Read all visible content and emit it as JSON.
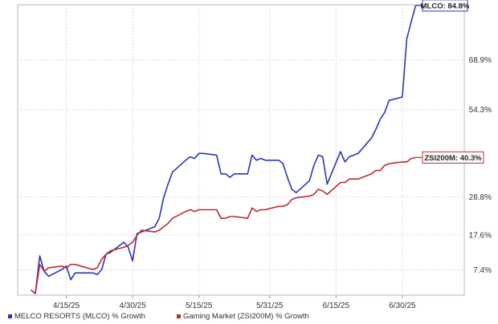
{
  "chart_data": {
    "type": "line",
    "title": "",
    "xlabel": "",
    "ylabel": "",
    "x_tick_labels": [
      "4/15/25",
      "4/30/25",
      "5/15/25",
      "5/31/25",
      "6/15/25",
      "6/30/25"
    ],
    "y_tick_labels": [
      "7.4%",
      "17.6%",
      "28.8%",
      "54.3%",
      "68.9%"
    ],
    "ylim_label": [
      "0%",
      "85%"
    ],
    "grid": true,
    "legend_position": "bottom",
    "series": [
      {
        "name": "MELCO RESORTS (MLCO) % Growth",
        "color": "#2b35b8",
        "end_label": "MLCO: 84.8%",
        "points": [
          [
            "2025-04-07",
            1.5
          ],
          [
            "2025-04-08",
            0.5
          ],
          [
            "2025-04-09",
            11.5
          ],
          [
            "2025-04-10",
            7.0
          ],
          [
            "2025-04-11",
            5.5
          ],
          [
            "2025-04-14",
            7.5
          ],
          [
            "2025-04-15",
            8.5
          ],
          [
            "2025-04-16",
            4.5
          ],
          [
            "2025-04-17",
            6.5
          ],
          [
            "2025-04-21",
            6.5
          ],
          [
            "2025-04-22",
            6.0
          ],
          [
            "2025-04-23",
            7.5
          ],
          [
            "2025-04-24",
            12.0
          ],
          [
            "2025-04-25",
            12.5
          ],
          [
            "2025-04-28",
            15.5
          ],
          [
            "2025-04-29",
            14.0
          ],
          [
            "2025-04-30",
            10.0
          ],
          [
            "2025-05-01",
            18.0
          ],
          [
            "2025-05-02",
            18.5
          ],
          [
            "2025-05-05",
            20.0
          ],
          [
            "2025-05-06",
            22.5
          ],
          [
            "2025-05-07",
            28.5
          ],
          [
            "2025-05-08",
            32.5
          ],
          [
            "2025-05-09",
            36.0
          ],
          [
            "2025-05-12",
            39.5
          ],
          [
            "2025-05-13",
            40.5
          ],
          [
            "2025-05-14",
            40.0
          ],
          [
            "2025-05-15",
            41.5
          ],
          [
            "2025-05-16",
            41.5
          ],
          [
            "2025-05-19",
            41.0
          ],
          [
            "2025-05-20",
            35.5
          ],
          [
            "2025-05-21",
            35.5
          ],
          [
            "2025-05-22",
            34.5
          ],
          [
            "2025-05-23",
            35.5
          ],
          [
            "2025-05-26",
            35.5
          ],
          [
            "2025-05-27",
            41.0
          ],
          [
            "2025-05-28",
            39.5
          ],
          [
            "2025-05-29",
            40.0
          ],
          [
            "2025-05-30",
            39.5
          ],
          [
            "2025-06-02",
            39.5
          ],
          [
            "2025-06-03",
            38.5
          ],
          [
            "2025-06-04",
            34.5
          ],
          [
            "2025-06-05",
            31.0
          ],
          [
            "2025-06-06",
            30.0
          ],
          [
            "2025-06-09",
            33.5
          ],
          [
            "2025-06-10",
            38.0
          ],
          [
            "2025-06-11",
            41.0
          ],
          [
            "2025-06-12",
            40.5
          ],
          [
            "2025-06-13",
            32.5
          ],
          [
            "2025-06-16",
            42.0
          ],
          [
            "2025-06-17",
            39.0
          ],
          [
            "2025-06-18",
            40.5
          ],
          [
            "2025-06-20",
            41.5
          ],
          [
            "2025-06-23",
            46.0
          ],
          [
            "2025-06-24",
            48.5
          ],
          [
            "2025-06-25",
            51.5
          ],
          [
            "2025-06-26",
            53.5
          ],
          [
            "2025-06-27",
            57.0
          ],
          [
            "2025-06-30",
            58.0
          ],
          [
            "2025-07-01",
            75.0
          ],
          [
            "2025-07-02",
            80.0
          ],
          [
            "2025-07-03",
            84.8
          ]
        ]
      },
      {
        "name": "Gaming Market (ZSI200M) % Growth",
        "color": "#c0282e",
        "end_label": "ZSI200M: 40.3%",
        "points": [
          [
            "2025-04-07",
            1.5
          ],
          [
            "2025-04-08",
            0.5
          ],
          [
            "2025-04-09",
            9.0
          ],
          [
            "2025-04-10",
            7.0
          ],
          [
            "2025-04-11",
            8.0
          ],
          [
            "2025-04-14",
            8.5
          ],
          [
            "2025-04-15",
            8.0
          ],
          [
            "2025-04-16",
            9.0
          ],
          [
            "2025-04-17",
            9.0
          ],
          [
            "2025-04-21",
            7.5
          ],
          [
            "2025-04-22",
            8.0
          ],
          [
            "2025-04-23",
            10.5
          ],
          [
            "2025-04-24",
            12.0
          ],
          [
            "2025-04-25",
            13.0
          ],
          [
            "2025-04-28",
            14.0
          ],
          [
            "2025-04-29",
            14.5
          ],
          [
            "2025-04-30",
            15.5
          ],
          [
            "2025-05-01",
            17.5
          ],
          [
            "2025-05-02",
            19.0
          ],
          [
            "2025-05-05",
            18.5
          ],
          [
            "2025-05-06",
            19.0
          ],
          [
            "2025-05-07",
            20.0
          ],
          [
            "2025-05-08",
            21.0
          ],
          [
            "2025-05-09",
            22.5
          ],
          [
            "2025-05-12",
            24.5
          ],
          [
            "2025-05-13",
            25.0
          ],
          [
            "2025-05-14",
            24.5
          ],
          [
            "2025-05-15",
            25.0
          ],
          [
            "2025-05-16",
            25.0
          ],
          [
            "2025-05-19",
            25.0
          ],
          [
            "2025-05-20",
            22.5
          ],
          [
            "2025-05-21",
            22.5
          ],
          [
            "2025-05-22",
            23.0
          ],
          [
            "2025-05-23",
            23.0
          ],
          [
            "2025-05-26",
            22.5
          ],
          [
            "2025-05-27",
            25.5
          ],
          [
            "2025-05-28",
            24.5
          ],
          [
            "2025-05-29",
            25.0
          ],
          [
            "2025-05-30",
            25.0
          ],
          [
            "2025-06-02",
            26.0
          ],
          [
            "2025-06-03",
            26.0
          ],
          [
            "2025-06-04",
            26.5
          ],
          [
            "2025-06-05",
            28.0
          ],
          [
            "2025-06-06",
            28.5
          ],
          [
            "2025-06-09",
            29.0
          ],
          [
            "2025-06-10",
            29.5
          ],
          [
            "2025-06-11",
            31.0
          ],
          [
            "2025-06-12",
            30.5
          ],
          [
            "2025-06-13",
            29.5
          ],
          [
            "2025-06-16",
            33.0
          ],
          [
            "2025-06-17",
            33.0
          ],
          [
            "2025-06-18",
            34.0
          ],
          [
            "2025-06-20",
            34.0
          ],
          [
            "2025-06-23",
            35.5
          ],
          [
            "2025-06-24",
            36.5
          ],
          [
            "2025-06-25",
            36.5
          ],
          [
            "2025-06-26",
            38.0
          ],
          [
            "2025-06-27",
            38.5
          ],
          [
            "2025-06-30",
            39.0
          ],
          [
            "2025-07-01",
            39.0
          ],
          [
            "2025-07-02",
            40.0
          ],
          [
            "2025-07-03",
            40.3
          ]
        ]
      }
    ]
  }
}
